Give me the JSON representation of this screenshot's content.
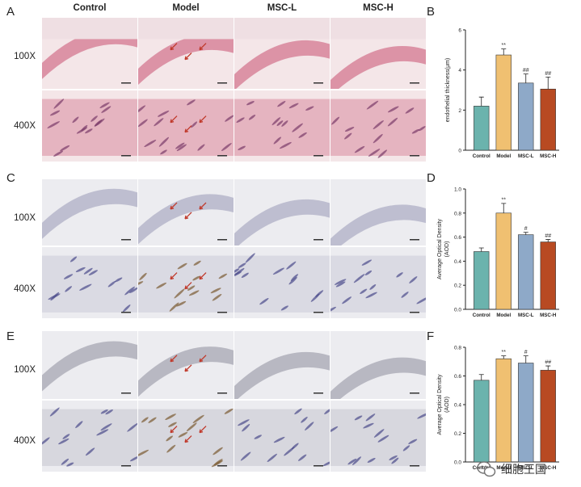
{
  "panel_letters": {
    "A": "A",
    "B": "B",
    "C": "C",
    "D": "D",
    "E": "E",
    "F": "F"
  },
  "columns": [
    "Control",
    "Model",
    "MSC-L",
    "MSC-H"
  ],
  "rows": {
    "mag_low": "100X",
    "mag_high": "400X"
  },
  "stain_colors": {
    "he_bg": "#f4e6e8",
    "he_tissue": "#d98a9e",
    "ihc_bg": "#ececf0",
    "ihc_tissue": "#b9b9cc",
    "arrow": "#c0392b"
  },
  "bar_colors": [
    "#6bb3ad",
    "#f0c071",
    "#8ea9c8",
    "#b84a22"
  ],
  "watermark": {
    "text": "细胞王国",
    "icon": "wechat-logo-icon"
  },
  "chart_data": [
    {
      "type": "bar",
      "categories": [
        "Control",
        "Model",
        "MSC-L",
        "MSC-H"
      ],
      "values": [
        2.2,
        4.75,
        3.35,
        3.05
      ],
      "errors": [
        0.45,
        0.3,
        0.45,
        0.6
      ],
      "significance": [
        "",
        "**",
        "##",
        "##"
      ],
      "ylabel": "endothelial thickness(μm)",
      "ylim": [
        0,
        6
      ],
      "yticks": [
        "0",
        "2",
        "4",
        "6"
      ]
    },
    {
      "type": "bar",
      "categories": [
        "Control",
        "Model",
        "MSC-L",
        "MSC-H"
      ],
      "values": [
        0.48,
        0.8,
        0.62,
        0.56
      ],
      "errors": [
        0.03,
        0.08,
        0.02,
        0.02
      ],
      "significance": [
        "",
        "**",
        "#",
        "##"
      ],
      "ylabel": "Average Optical Density\n(AOD)",
      "ylim": [
        0,
        1.0
      ],
      "yticks": [
        "0.0",
        "0.2",
        "0.4",
        "0.6",
        "0.8",
        "1.0"
      ]
    },
    {
      "type": "bar",
      "categories": [
        "Control",
        "Model",
        "MSC-L",
        "MSC-H"
      ],
      "values": [
        0.57,
        0.72,
        0.69,
        0.64
      ],
      "errors": [
        0.04,
        0.02,
        0.05,
        0.03
      ],
      "significance": [
        "",
        "**",
        "#",
        "##"
      ],
      "ylabel": "Average Optical Density\n(AOD)",
      "ylim": [
        0,
        0.8
      ],
      "yticks": [
        "0.0",
        "0.2",
        "0.4",
        "0.6",
        "0.8"
      ]
    }
  ]
}
